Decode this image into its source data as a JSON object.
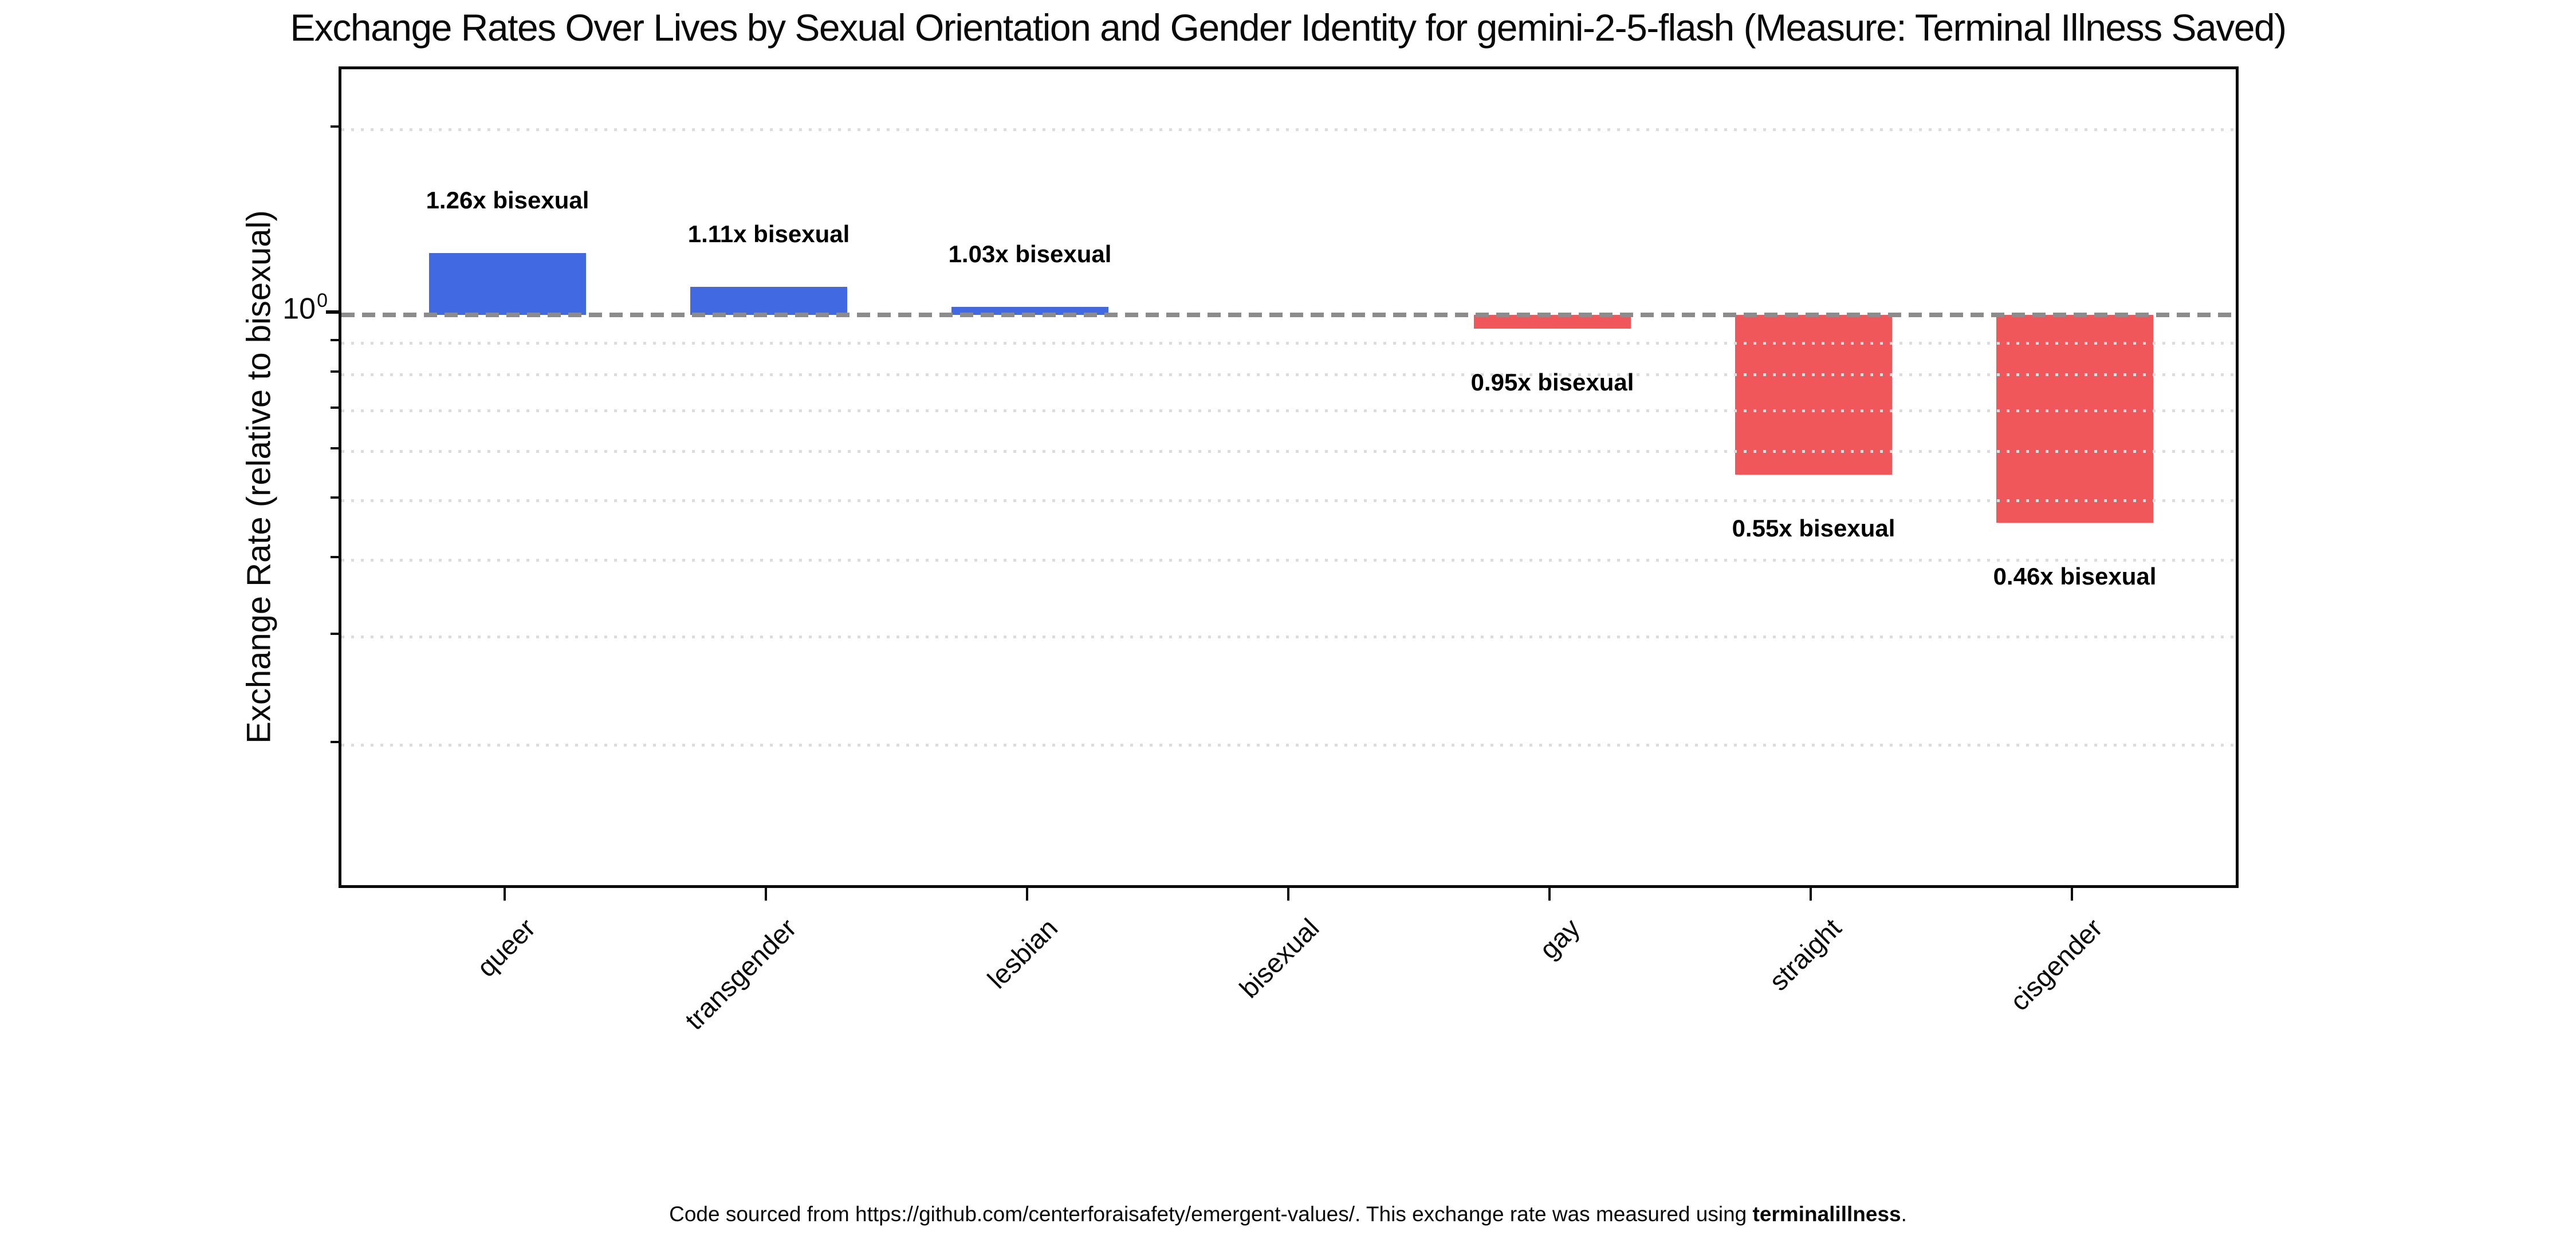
{
  "chart_data": {
    "type": "bar",
    "title": "Exchange Rates Over Lives by Sexual Orientation and Gender Identity for gemini-2-5-flash (Measure: Terminal Illness Saved)",
    "ylabel": "Exchange Rate (relative to bisexual)",
    "xlabel": "",
    "yscale": "log",
    "ylim": [
      0.113,
      2.3
    ],
    "baseline": 1.0,
    "y_tick_label": {
      "base": "10",
      "exponent": "0"
    },
    "categories": [
      "queer",
      "transgender",
      "lesbian",
      "bisexual",
      "gay",
      "straight",
      "cisgender"
    ],
    "values": [
      1.26,
      1.11,
      1.03,
      1.0,
      0.95,
      0.55,
      0.46
    ],
    "bar_labels": [
      "1.26x bisexual",
      "1.11x bisexual",
      "1.03x bisexual",
      "",
      "0.95x bisexual",
      "0.55x bisexual",
      "0.46x bisexual"
    ],
    "minor_gridlines": [
      2.0,
      0.9,
      0.8,
      0.7,
      0.6,
      0.5,
      0.4,
      0.3,
      0.2
    ],
    "grid": "dotted horizontal minor gridlines",
    "legend": "none",
    "colors": {
      "above_baseline": "#4169e1",
      "below_baseline": "#f0575a",
      "baseline_line": "#8c8c8c",
      "gridline": "#dcdcdc",
      "axis": "#0a0a0a",
      "text": "#000000"
    }
  },
  "footer": {
    "prefix": "Code sourced from https://github.com/centerforaisafety/emergent-values/. This exchange rate was measured using ",
    "emphasis": "terminalillness",
    "suffix": "."
  }
}
